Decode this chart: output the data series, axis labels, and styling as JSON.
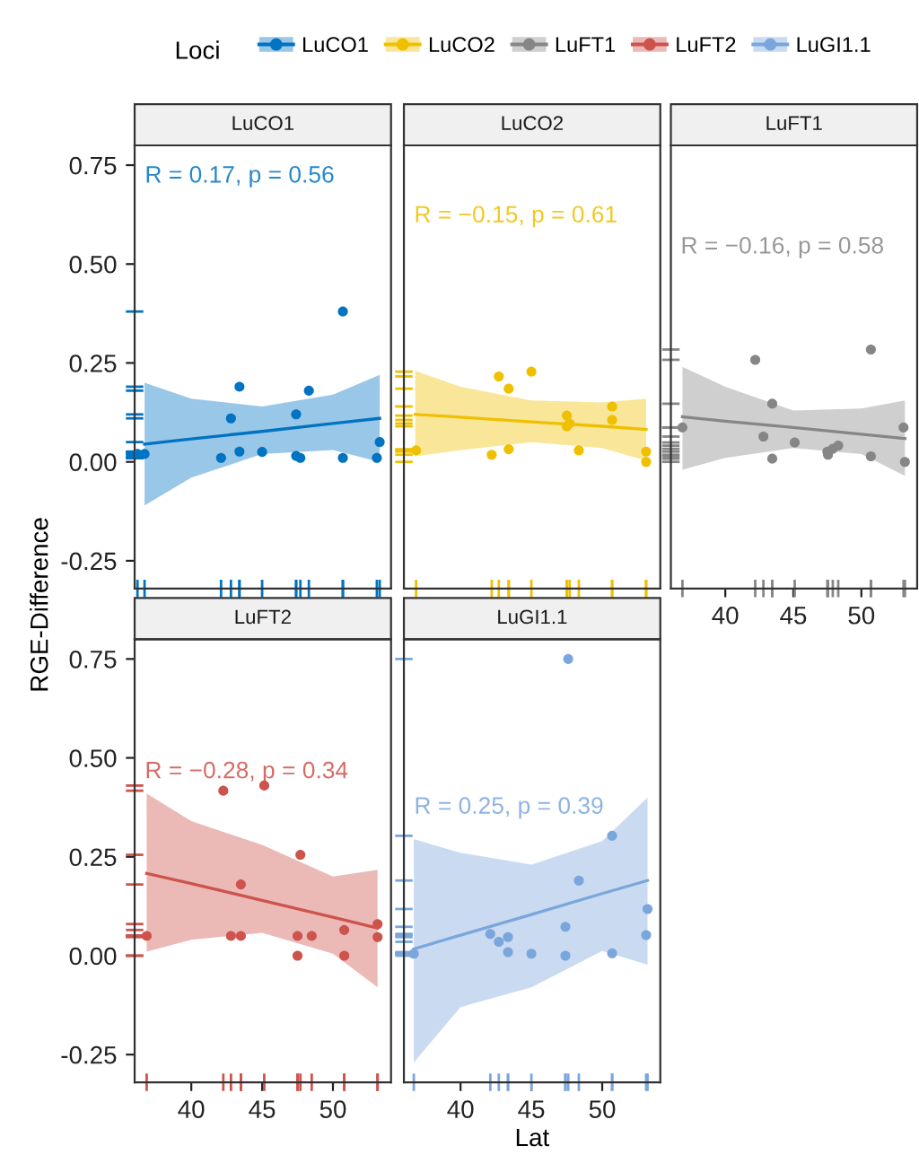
{
  "chart_data": [
    {
      "type": "scatter",
      "title": "LuCO1",
      "ylabel": "RGE-Difference",
      "legend": "top",
      "legend_title": "Loci",
      "tick_labels": "y",
      "grid": false,
      "xlim": [
        36,
        54.1
      ],
      "ylim": [
        -0.32,
        0.8
      ],
      "yticks": [
        {
          "value": -0.25,
          "label": "-0.25"
        },
        {
          "value": 0,
          "label": "0.00"
        },
        {
          "value": 0.25,
          "label": "0.25"
        },
        {
          "value": 0.5,
          "label": "0.50"
        },
        {
          "value": 0.75,
          "label": "0.75"
        }
      ],
      "annotations": [
        "R = 0.17, p = 0.56"
      ],
      "series": [
        {
          "name": "LuCO1",
          "marker": "circle",
          "color": "#0073c2",
          "x": [
            36.2,
            36.7,
            42.1,
            42.8,
            43.4,
            43.4,
            45.0,
            47.4,
            47.4,
            47.7,
            48.3,
            50.7,
            50.7,
            53.1,
            53.3
          ],
          "values": [
            0.02,
            0.02,
            0.01,
            0.11,
            0.19,
            0.026,
            0.025,
            0.12,
            0.015,
            0.01,
            0.18,
            0.38,
            0.01,
            0.01,
            0.05
          ]
        },
        {
          "type": "line",
          "marker": "none",
          "color": "#0073c2",
          "x": [
            36.7,
            40,
            45,
            50,
            53.3
          ],
          "values": [
            0.045,
            0.058,
            0.077,
            0.097,
            0.11
          ],
          "lower": [
            -0.11,
            -0.04,
            0.02,
            0.03,
            0.0
          ],
          "upper": [
            0.2,
            0.16,
            0.14,
            0.17,
            0.22
          ]
        }
      ]
    },
    {
      "type": "scatter",
      "title": "LuCO2",
      "tick_labels": false,
      "grid": false,
      "xlim": [
        36,
        54.1
      ],
      "ylim": [
        -0.32,
        0.8
      ],
      "annotations": [
        "R = −0.15, p = 0.61"
      ],
      "series": [
        {
          "name": "LuCO2",
          "marker": "circle",
          "color": "#efc000",
          "x": [
            36.86,
            42.2,
            42.7,
            43.4,
            43.4,
            45.0,
            47.5,
            47.5,
            47.7,
            48.35,
            50.7,
            50.7,
            53.1,
            53.1
          ],
          "values": [
            0.029,
            0.018,
            0.216,
            0.032,
            0.185,
            0.228,
            0.117,
            0.09,
            0.097,
            0.029,
            0.14,
            0.106,
            0.026,
            0.0
          ]
        },
        {
          "type": "line",
          "marker": "none",
          "color": "#efc000",
          "x": [
            36.8,
            40,
            45,
            50,
            53.1
          ],
          "values": [
            0.12,
            0.113,
            0.101,
            0.09,
            0.082
          ],
          "lower": [
            0.014,
            0.03,
            0.05,
            0.035,
            0.003
          ],
          "upper": [
            0.23,
            0.19,
            0.155,
            0.15,
            0.16
          ]
        }
      ]
    },
    {
      "type": "scatter",
      "title": "LuFT1",
      "tick_labels": "x",
      "grid": false,
      "xlim": [
        36,
        54.1
      ],
      "ylim": [
        -0.32,
        0.8
      ],
      "xticks": [
        40,
        45,
        50
      ],
      "annotations": [
        "R = −0.16, p = 0.58"
      ],
      "series": [
        {
          "name": "LuFT1",
          "marker": "circle",
          "color": "#868686",
          "x": [
            36.85,
            42.2,
            42.8,
            43.45,
            43.45,
            45.1,
            47.5,
            47.55,
            47.9,
            48.3,
            50.7,
            50.7,
            53.1,
            53.2
          ],
          "values": [
            0.087,
            0.258,
            0.064,
            0.147,
            0.008,
            0.049,
            0.026,
            0.018,
            0.033,
            0.041,
            0.284,
            0.014,
            0.087,
            0.0
          ]
        },
        {
          "type": "line",
          "marker": "none",
          "color": "#868686",
          "x": [
            36.85,
            40,
            45,
            50,
            53.2
          ],
          "values": [
            0.114,
            0.103,
            0.087,
            0.07,
            0.059
          ],
          "lower": [
            -0.02,
            0.01,
            0.035,
            0.02,
            -0.035
          ],
          "upper": [
            0.24,
            0.19,
            0.13,
            0.135,
            0.155
          ]
        }
      ]
    },
    {
      "type": "scatter",
      "title": "LuFT2",
      "grid": false,
      "xlim": [
        36,
        54.1
      ],
      "ylim": [
        -0.32,
        0.8
      ],
      "xticks": [
        40,
        45,
        50
      ],
      "yticks": [
        {
          "value": -0.25,
          "label": "-0.25"
        },
        {
          "value": 0,
          "label": "0.00"
        },
        {
          "value": 0.25,
          "label": "0.25"
        },
        {
          "value": 0.5,
          "label": "0.50"
        },
        {
          "value": 0.75,
          "label": "0.75"
        }
      ],
      "annotations": [
        "R = −0.28, p = 0.34"
      ],
      "series": [
        {
          "name": "LuFT2",
          "marker": "circle",
          "color": "#cd534c",
          "x": [
            36.85,
            42.26,
            42.8,
            43.5,
            43.5,
            45.15,
            47.5,
            47.5,
            47.7,
            48.5,
            50.8,
            50.8,
            53.15,
            53.15
          ],
          "values": [
            0.05,
            0.417,
            0.05,
            0.05,
            0.18,
            0.43,
            0.05,
            0.0,
            0.255,
            0.05,
            0.065,
            0.0,
            0.08,
            0.047
          ]
        },
        {
          "type": "line",
          "marker": "none",
          "color": "#cd534c",
          "x": [
            36.85,
            40,
            45,
            50,
            53.15
          ],
          "values": [
            0.208,
            0.182,
            0.14,
            0.097,
            0.07
          ],
          "lower": [
            0.01,
            0.04,
            0.058,
            0.005,
            -0.08
          ],
          "upper": [
            0.41,
            0.34,
            0.28,
            0.2,
            0.217
          ]
        }
      ]
    },
    {
      "type": "scatter",
      "title": "LuGI1.1",
      "xlabel": "Lat",
      "tick_labels": "x",
      "grid": false,
      "xlim": [
        36,
        54.1
      ],
      "ylim": [
        -0.32,
        0.8
      ],
      "xticks": [
        40,
        45,
        50
      ],
      "annotations": [
        "R = 0.25, p = 0.39"
      ],
      "series": [
        {
          "name": "LuGI1.1",
          "marker": "circle",
          "color": "#7aa6dc",
          "x": [
            36.7,
            42.1,
            42.7,
            43.35,
            43.35,
            45.0,
            47.6,
            47.4,
            47.4,
            48.35,
            50.7,
            50.7,
            53.2,
            53.1
          ],
          "values": [
            0.005,
            0.055,
            0.035,
            0.047,
            0.009,
            0.005,
            0.75,
            0.073,
            0.0,
            0.19,
            0.303,
            0.006,
            0.118,
            0.052
          ]
        },
        {
          "type": "line",
          "marker": "none",
          "color": "#7aa6dc",
          "x": [
            36.7,
            40,
            45,
            50,
            53.2
          ],
          "values": [
            0.017,
            0.052,
            0.104,
            0.157,
            0.19
          ],
          "lower": [
            -0.27,
            -0.13,
            -0.08,
            0.012,
            -0.023
          ],
          "upper": [
            0.295,
            0.26,
            0.23,
            0.29,
            0.4
          ]
        }
      ]
    }
  ]
}
